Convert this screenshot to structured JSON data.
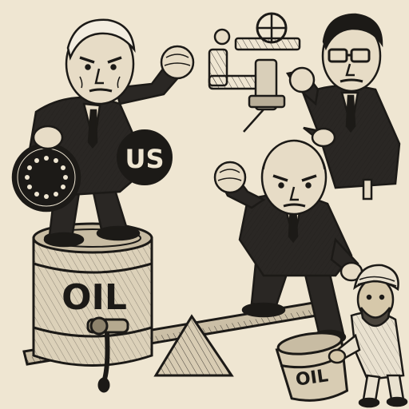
{
  "labels": {
    "big_barrel": "OIL",
    "small_barrel": "OIL",
    "us_disc": "US"
  },
  "colors": {
    "background": "#efe6d2",
    "ink": "#1c1a17",
    "suit": "#2a2724",
    "skin": "#e7dcc6",
    "turban": "#e9e1cf"
  }
}
